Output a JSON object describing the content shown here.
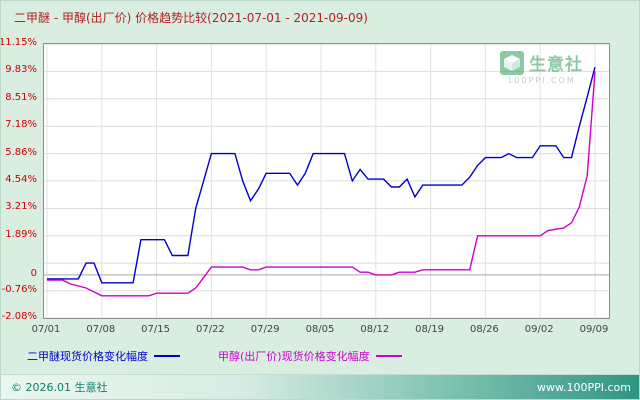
{
  "title": "二甲醚 - 甲醇(出厂价) 价格趋势比较(2021-07-01 - 2021-09-09)",
  "watermark": {
    "brand": "生意社",
    "domain": "100PPI.COM"
  },
  "footer": {
    "copyright": "© 2026.01 生意社",
    "site": "www.100PPI.com"
  },
  "colors": {
    "background": "#d9eee1",
    "title": "#b22222",
    "y_tick": "#cc0000",
    "series_blue": "#0000cc",
    "series_magenta": "#cc00cc",
    "footer_teal": "#2f9483"
  },
  "chart_data": {
    "type": "line",
    "title": "二甲醚 - 甲醇(出厂价) 价格趋势比较(2021-07-01 - 2021-09-09)",
    "xlabel": "",
    "ylabel": "",
    "grid": true,
    "legend_position": "bottom",
    "ylim": [
      -2.08,
      11.155
    ],
    "y_ticks": [
      {
        "label": "11.15%",
        "value": 11.15
      },
      {
        "label": "9.83%",
        "value": 9.83
      },
      {
        "label": "8.51%",
        "value": 8.51
      },
      {
        "label": "7.18%",
        "value": 7.18
      },
      {
        "label": "5.86%",
        "value": 5.86
      },
      {
        "label": "4.54%",
        "value": 4.54
      },
      {
        "label": "3.21%",
        "value": 3.21
      },
      {
        "label": "1.89%",
        "value": 1.89
      },
      {
        "label": "0",
        "value": 0
      },
      {
        "label": "-0.76%",
        "value": -0.76
      },
      {
        "label": "-2.08%",
        "value": -2.08
      }
    ],
    "grid_y_values": [
      -2.08,
      -0.76,
      0.57,
      1.89,
      3.21,
      4.54,
      5.86,
      7.18,
      8.51,
      9.83,
      11.15
    ],
    "x_tick_labels": [
      "07/01",
      "07/08",
      "07/15",
      "07/22",
      "07/29",
      "08/05",
      "08/12",
      "08/19",
      "08/26",
      "09/02",
      "09/09"
    ],
    "x_tick_days": [
      0,
      7,
      14,
      21,
      28,
      35,
      42,
      49,
      56,
      63,
      70
    ],
    "total_days": 70,
    "x_unit": "days since 2021-07-01",
    "y_unit": "percent change",
    "series": [
      {
        "name": "二甲醚现货价格变化幅度",
        "color": "#0000cc",
        "points": [
          [
            0,
            -0.19
          ],
          [
            4,
            -0.19
          ],
          [
            5,
            0.57
          ],
          [
            6,
            0.57
          ],
          [
            7,
            -0.38
          ],
          [
            11,
            -0.38
          ],
          [
            12,
            1.7
          ],
          [
            15,
            1.7
          ],
          [
            16,
            0.94
          ],
          [
            18,
            0.94
          ],
          [
            19,
            3.21
          ],
          [
            20,
            4.54
          ],
          [
            21,
            5.86
          ],
          [
            24,
            5.86
          ],
          [
            25,
            4.54
          ],
          [
            26,
            3.58
          ],
          [
            27,
            4.15
          ],
          [
            28,
            4.91
          ],
          [
            31,
            4.91
          ],
          [
            32,
            4.34
          ],
          [
            33,
            4.91
          ],
          [
            34,
            5.86
          ],
          [
            38,
            5.86
          ],
          [
            39,
            4.54
          ],
          [
            40,
            5.1
          ],
          [
            41,
            4.63
          ],
          [
            43,
            4.63
          ],
          [
            44,
            4.25
          ],
          [
            45,
            4.25
          ],
          [
            46,
            4.63
          ],
          [
            47,
            3.77
          ],
          [
            48,
            4.34
          ],
          [
            53,
            4.34
          ],
          [
            54,
            4.72
          ],
          [
            55,
            5.29
          ],
          [
            56,
            5.67
          ],
          [
            58,
            5.67
          ],
          [
            59,
            5.86
          ],
          [
            60,
            5.67
          ],
          [
            62,
            5.67
          ],
          [
            63,
            6.24
          ],
          [
            65,
            6.24
          ],
          [
            66,
            5.67
          ],
          [
            67,
            5.67
          ],
          [
            68,
            7.18
          ],
          [
            69,
            8.6
          ],
          [
            70,
            10.04
          ]
        ]
      },
      {
        "name": "甲醇(出厂价)现货价格变化幅度",
        "color": "#cc00cc",
        "points": [
          [
            0,
            -0.25
          ],
          [
            2,
            -0.25
          ],
          [
            3,
            -0.44
          ],
          [
            5,
            -0.63
          ],
          [
            7,
            -1.01
          ],
          [
            13,
            -1.01
          ],
          [
            14,
            -0.88
          ],
          [
            18,
            -0.88
          ],
          [
            19,
            -0.63
          ],
          [
            20,
            -0.13
          ],
          [
            21,
            0.38
          ],
          [
            25,
            0.38
          ],
          [
            26,
            0.25
          ],
          [
            27,
            0.25
          ],
          [
            28,
            0.38
          ],
          [
            39,
            0.38
          ],
          [
            40,
            0.13
          ],
          [
            41,
            0.13
          ],
          [
            42,
            0.0
          ],
          [
            44,
            0.0
          ],
          [
            45,
            0.13
          ],
          [
            47,
            0.13
          ],
          [
            48,
            0.25
          ],
          [
            54,
            0.25
          ],
          [
            55,
            1.89
          ],
          [
            63,
            1.89
          ],
          [
            64,
            2.14
          ],
          [
            66,
            2.27
          ],
          [
            67,
            2.52
          ],
          [
            68,
            3.28
          ],
          [
            69,
            4.79
          ],
          [
            70,
            9.83
          ]
        ]
      }
    ]
  }
}
